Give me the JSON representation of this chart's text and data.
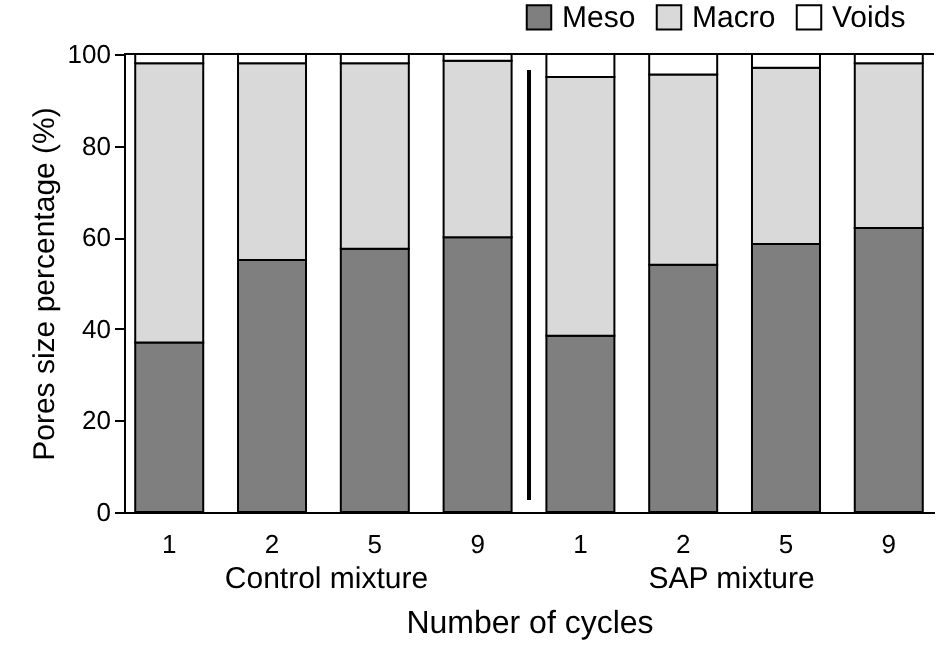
{
  "chart_data": {
    "type": "bar",
    "stacked": true,
    "ylabel": "Pores size percentage (%)",
    "xlabel": "Number of cycles",
    "categories": [
      "1",
      "2",
      "5",
      "9",
      "1",
      "2",
      "5",
      "9"
    ],
    "series": [
      {
        "name": "Meso",
        "color": "#7f7f7f",
        "values": [
          37,
          55,
          57.5,
          60,
          38.5,
          54,
          58.5,
          62
        ]
      },
      {
        "name": "Macro",
        "color": "#d9d9d9",
        "values": [
          61,
          43,
          40.5,
          38.5,
          56.5,
          41.5,
          38.5,
          36
        ]
      },
      {
        "name": "Voids",
        "color": "#ffffff",
        "values": [
          2,
          2,
          2,
          1.5,
          5,
          4.5,
          3,
          2
        ]
      }
    ],
    "ylim": [
      0,
      100
    ],
    "yticks": [
      0,
      20,
      40,
      60,
      80,
      100
    ],
    "grid": false,
    "legend": "top right",
    "annotations": [
      "Control mixture",
      "SAP mixture"
    ]
  }
}
